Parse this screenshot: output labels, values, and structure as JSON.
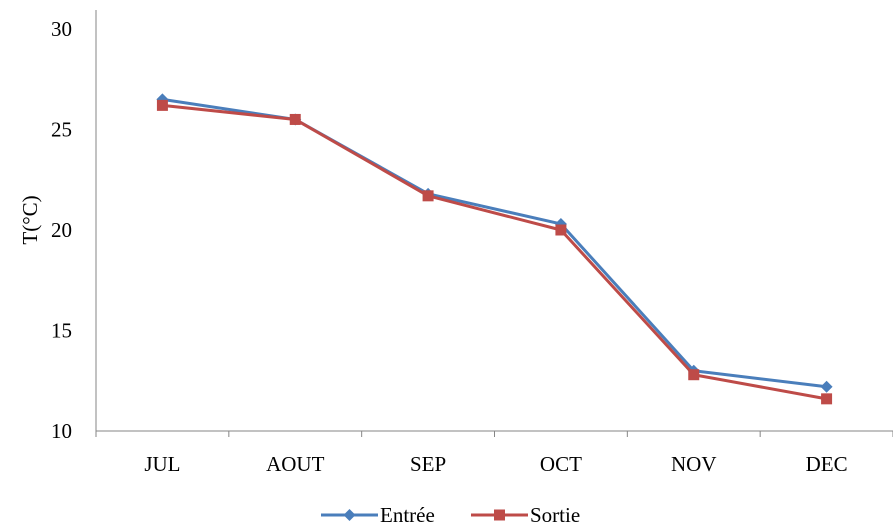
{
  "chart_data": {
    "type": "line",
    "title": "",
    "xlabel": "",
    "ylabel": "T(°C)",
    "categories": [
      "JUL",
      "AOUT",
      "SEP",
      "OCT",
      "NOV",
      "DEC"
    ],
    "ylim": [
      10,
      30
    ],
    "yticks": [
      10,
      15,
      20,
      25,
      30
    ],
    "grid": false,
    "legend_position": "bottom",
    "series": [
      {
        "name": "Entrée",
        "values": [
          26.5,
          25.5,
          21.8,
          20.3,
          13.0,
          12.2
        ],
        "color": "#4a7ebb",
        "marker": "diamond"
      },
      {
        "name": "Sortie",
        "values": [
          26.2,
          25.5,
          21.7,
          20.0,
          12.8,
          11.6
        ],
        "color": "#be4b48",
        "marker": "square"
      }
    ]
  }
}
